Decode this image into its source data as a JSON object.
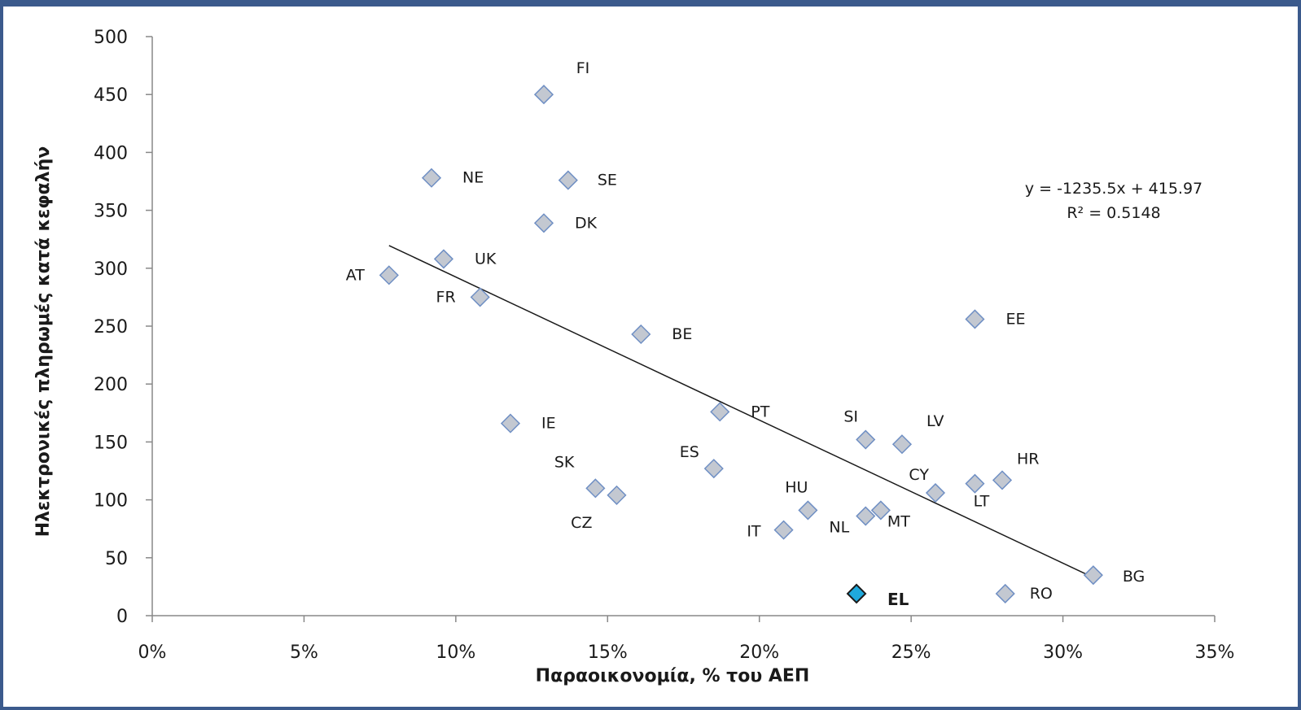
{
  "chart_data": {
    "type": "scatter",
    "title": "",
    "xlabel": "Παραοικονομία, % του ΑΕΠ",
    "ylabel": "Ηλεκτρονικές πληρωμές κατά κεφαλήν",
    "xlim": [
      0,
      0.35
    ],
    "ylim": [
      0,
      500
    ],
    "x_ticks": [
      0,
      0.05,
      0.1,
      0.15,
      0.2,
      0.25,
      0.3,
      0.35
    ],
    "x_tick_labels": [
      "0%",
      "5%",
      "10%",
      "15%",
      "20%",
      "25%",
      "30%",
      "35%"
    ],
    "y_ticks": [
      0,
      50,
      100,
      150,
      200,
      250,
      300,
      350,
      400,
      450,
      500
    ],
    "y_tick_labels": [
      "0",
      "50",
      "100",
      "150",
      "200",
      "250",
      "300",
      "350",
      "400",
      "450",
      "500"
    ],
    "grid": false,
    "points": [
      {
        "label": "FI",
        "x": 0.129,
        "y": 450
      },
      {
        "label": "NE",
        "x": 0.092,
        "y": 378
      },
      {
        "label": "SE",
        "x": 0.137,
        "y": 376
      },
      {
        "label": "DK",
        "x": 0.129,
        "y": 339
      },
      {
        "label": "UK",
        "x": 0.096,
        "y": 308
      },
      {
        "label": "AT",
        "x": 0.078,
        "y": 294
      },
      {
        "label": "FR",
        "x": 0.108,
        "y": 275
      },
      {
        "label": "BE",
        "x": 0.161,
        "y": 243
      },
      {
        "label": "EE",
        "x": 0.271,
        "y": 256
      },
      {
        "label": "PT",
        "x": 0.187,
        "y": 176
      },
      {
        "label": "IE",
        "x": 0.118,
        "y": 166
      },
      {
        "label": "SI",
        "x": 0.235,
        "y": 152
      },
      {
        "label": "LV",
        "x": 0.247,
        "y": 148
      },
      {
        "label": "ES",
        "x": 0.185,
        "y": 127
      },
      {
        "label": "HR",
        "x": 0.28,
        "y": 117
      },
      {
        "label": "LT",
        "x": 0.271,
        "y": 114
      },
      {
        "label": "CY",
        "x": 0.258,
        "y": 106
      },
      {
        "label": "SK",
        "x": 0.146,
        "y": 110
      },
      {
        "label": "CZ",
        "x": 0.153,
        "y": 104
      },
      {
        "label": "HU",
        "x": 0.216,
        "y": 91
      },
      {
        "label": "MT",
        "x": 0.24,
        "y": 91
      },
      {
        "label": "NL",
        "x": 0.235,
        "y": 86
      },
      {
        "label": "IT",
        "x": 0.208,
        "y": 74
      },
      {
        "label": "BG",
        "x": 0.31,
        "y": 35
      },
      {
        "label": "RO",
        "x": 0.281,
        "y": 19
      },
      {
        "label": "EL",
        "x": 0.232,
        "y": 19,
        "highlight": true
      }
    ],
    "trendline": {
      "slope": -1235.5,
      "intercept": 415.97,
      "x_range": [
        0.078,
        0.31
      ],
      "equation_label": "y = -1235.5x + 415.97",
      "r2_label": "R² = 0.5148"
    }
  },
  "colors": {
    "marker_fill": "#c3c8d1",
    "marker_stroke": "#6f8fc4",
    "highlight_fill": "#1fa9dc",
    "highlight_stroke": "#1a1a1a",
    "axis": "#888888",
    "text": "#1a1a1a",
    "trendline": "#1a1a1a",
    "frame": "#3b5a8c"
  }
}
